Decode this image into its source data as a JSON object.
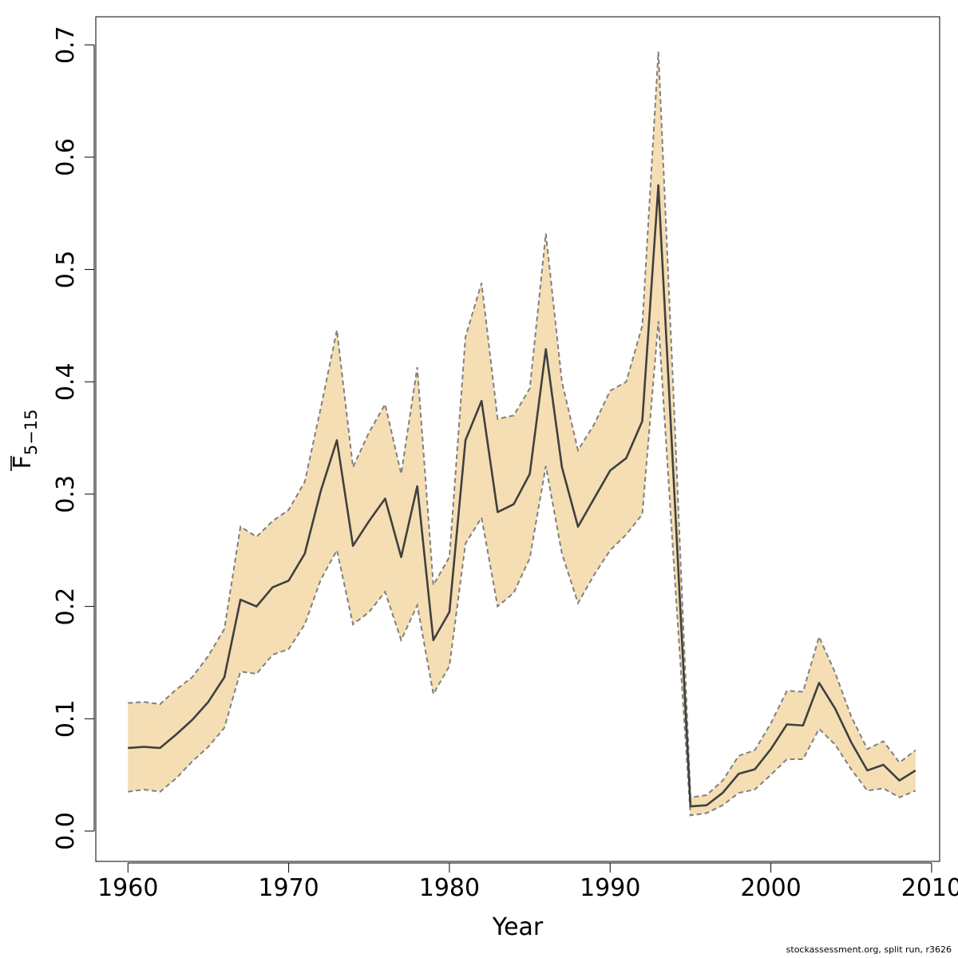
{
  "chart_data": {
    "type": "line",
    "title": "",
    "xlabel": "Year",
    "ylabel": {
      "base": "F",
      "subscript": "5−15"
    },
    "xlim": [
      1958,
      2010.5
    ],
    "ylim": [
      -0.027,
      0.725
    ],
    "x_ticks": [
      1960,
      1970,
      1980,
      1990,
      2000,
      2010
    ],
    "y_ticks": [
      0.0,
      0.1,
      0.2,
      0.3,
      0.4,
      0.5,
      0.6,
      0.7
    ],
    "y_tick_labels": [
      "0.0",
      "0.1",
      "0.2",
      "0.3",
      "0.4",
      "0.5",
      "0.6",
      "0.7"
    ],
    "grid": false,
    "colors": {
      "band": "#f5deb3",
      "line": "#404040",
      "bound_line": "#808080"
    },
    "years": [
      1960,
      1961,
      1962,
      1963,
      1964,
      1965,
      1966,
      1967,
      1968,
      1969,
      1970,
      1971,
      1972,
      1973,
      1974,
      1975,
      1976,
      1977,
      1978,
      1979,
      1980,
      1981,
      1982,
      1983,
      1984,
      1985,
      1986,
      1987,
      1988,
      1989,
      1990,
      1991,
      1992,
      1993,
      1994,
      1995,
      1996,
      1997,
      1998,
      1999,
      2000,
      2001,
      2002,
      2003,
      2004,
      2005,
      2006,
      2007,
      2008,
      2009
    ],
    "series": [
      {
        "role": "estimate",
        "values": [
          0.074,
          0.075,
          0.074,
          0.086,
          0.099,
          0.115,
          0.137,
          0.206,
          0.2,
          0.217,
          0.223,
          0.247,
          0.303,
          0.348,
          0.254,
          0.276,
          0.296,
          0.244,
          0.307,
          0.17,
          0.195,
          0.348,
          0.383,
          0.284,
          0.291,
          0.318,
          0.429,
          0.324,
          0.271,
          0.296,
          0.321,
          0.332,
          0.365,
          0.575,
          0.3,
          0.022,
          0.023,
          0.034,
          0.051,
          0.055,
          0.073,
          0.095,
          0.094,
          0.132,
          0.109,
          0.079,
          0.054,
          0.059,
          0.045,
          0.054
        ]
      },
      {
        "role": "upper",
        "values": [
          0.114,
          0.115,
          0.113,
          0.126,
          0.137,
          0.156,
          0.18,
          0.271,
          0.262,
          0.276,
          0.286,
          0.311,
          0.377,
          0.446,
          0.324,
          0.355,
          0.38,
          0.318,
          0.413,
          0.219,
          0.244,
          0.44,
          0.488,
          0.367,
          0.37,
          0.394,
          0.532,
          0.4,
          0.339,
          0.362,
          0.392,
          0.4,
          0.45,
          0.694,
          0.37,
          0.03,
          0.032,
          0.045,
          0.067,
          0.072,
          0.096,
          0.125,
          0.124,
          0.173,
          0.141,
          0.102,
          0.073,
          0.08,
          0.061,
          0.072
        ]
      },
      {
        "role": "lower",
        "values": [
          0.035,
          0.037,
          0.035,
          0.047,
          0.062,
          0.075,
          0.092,
          0.142,
          0.14,
          0.157,
          0.162,
          0.184,
          0.224,
          0.25,
          0.184,
          0.195,
          0.213,
          0.17,
          0.201,
          0.122,
          0.147,
          0.256,
          0.279,
          0.2,
          0.212,
          0.243,
          0.325,
          0.247,
          0.203,
          0.228,
          0.25,
          0.264,
          0.282,
          0.454,
          0.23,
          0.014,
          0.016,
          0.023,
          0.034,
          0.037,
          0.05,
          0.064,
          0.064,
          0.091,
          0.077,
          0.055,
          0.036,
          0.038,
          0.03,
          0.036
        ]
      }
    ]
  },
  "footer_text": "stockassessment.org, split  run, r3626"
}
